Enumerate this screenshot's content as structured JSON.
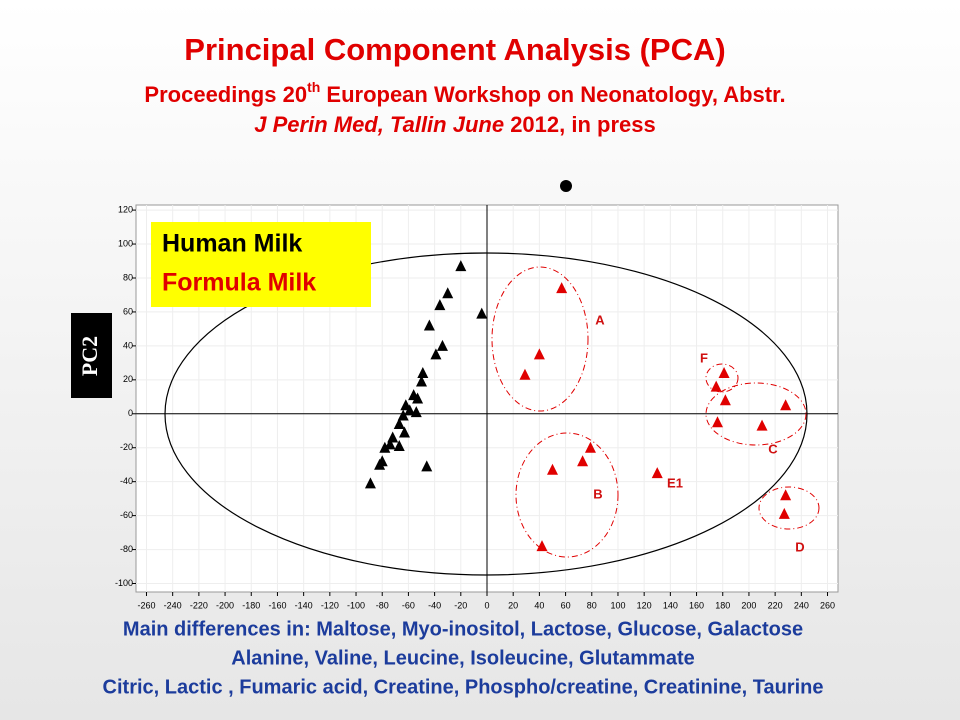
{
  "chart_data": {
    "type": "scatter",
    "title": "Principal Component Analysis (PCA)",
    "subtitle_parts": [
      "Proceedings 20",
      "th",
      " European Workshop on Neonatology, Abstr."
    ],
    "citation_parts": [
      "J Perin Med, Tallin June",
      " 2012, in press"
    ],
    "y_label": "PC2",
    "xlim": [
      -268,
      268
    ],
    "ylim": [
      -105,
      123
    ],
    "xticks": [
      -260,
      -240,
      -220,
      -200,
      -180,
      -160,
      -140,
      -120,
      -100,
      -80,
      -60,
      -40,
      -20,
      0,
      20,
      40,
      60,
      80,
      100,
      120,
      140,
      160,
      180,
      200,
      220,
      240,
      260
    ],
    "yticks": [
      -100,
      -80,
      -60,
      -40,
      -20,
      0,
      20,
      40,
      60,
      80,
      100,
      120
    ],
    "grid": true,
    "series": [
      {
        "name": "Human Milk",
        "color": "#000000",
        "x": [
          -20,
          -30,
          -36,
          -4,
          -44,
          -34,
          -39,
          -49,
          -50,
          -56,
          -53,
          -62,
          -59,
          -54,
          -64,
          -67,
          -63,
          -72,
          -74,
          -78,
          -67,
          -80,
          -82,
          -46,
          -89
        ],
        "values": [
          87,
          71,
          64,
          59,
          52,
          40,
          35,
          24,
          19,
          11,
          9,
          5,
          2,
          1,
          -1,
          -6,
          -11,
          -14,
          -18,
          -20,
          -19,
          -28,
          -30,
          -31,
          -41
        ]
      },
      {
        "name": "Formula Milk",
        "color": "#e00000",
        "x": [
          57,
          40,
          29,
          181,
          175,
          182,
          228,
          176,
          210,
          79,
          73,
          50,
          130,
          228,
          227,
          42
        ],
        "values": [
          74,
          35,
          23,
          24,
          16,
          8,
          5,
          -5,
          -7,
          -20,
          -28,
          -33,
          -35,
          -48,
          -59,
          -78
        ]
      }
    ],
    "annotations": [
      "A",
      "B",
      "C",
      "D",
      "E1",
      "F"
    ],
    "footer": [
      "Main differences in: Maltose, Myo-inositol, Lactose, Glucose, Galactose",
      "Alanine, Valine, Leucine, Isoleucine, Glutammate",
      "Citric, Lactic , Fumaric acid, Creatine, Phospho/creatine, Creatinine, Taurine"
    ]
  }
}
